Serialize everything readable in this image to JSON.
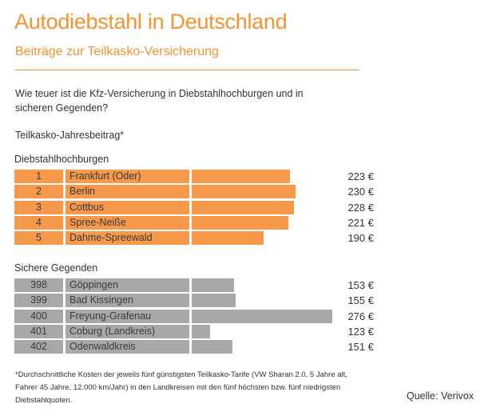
{
  "header": {
    "title": "Autodiebstahl in Deutschland",
    "subtitle": "Beiträge zur Teilkasko-Versicherung"
  },
  "question": "Wie teuer ist die Kfz-Versicherung in Diebstahlhochburgen und in sicheren Gegenden?",
  "metric_label": "Teilkasko-Jahresbeitrag*",
  "colors": {
    "accent": "#f7922e",
    "hotspot_bar": "#f7994a",
    "safe_bar": "#a8a8a8"
  },
  "chart_data": {
    "type": "bar",
    "orientation": "horizontal",
    "title": "Autodiebstahl in Deutschland",
    "subtitle": "Beiträge zur Teilkasko-Versicherung",
    "xlabel": "Teilkasko-Jahresbeitrag*",
    "unit": "€",
    "groups": [
      {
        "name": "Diebstahlhochburgen",
        "color": "#f7994a",
        "rows": [
          {
            "rank": "1",
            "region": "Frankfurt (Oder)",
            "value": 223,
            "label": "223 €"
          },
          {
            "rank": "2",
            "region": "Berlin",
            "value": 230,
            "label": "230 €"
          },
          {
            "rank": "3",
            "region": "Cottbus",
            "value": 228,
            "label": "228 €"
          },
          {
            "rank": "4",
            "region": "Spree-Neiße",
            "value": 221,
            "label": "221 €"
          },
          {
            "rank": "5",
            "region": "Dahme-Spreewald",
            "value": 190,
            "label": "190 €"
          }
        ]
      },
      {
        "name": "Sichere Gegenden",
        "color": "#a8a8a8",
        "rows": [
          {
            "rank": "398",
            "region": "Göppingen",
            "value": 153,
            "label": "153 €"
          },
          {
            "rank": "399",
            "region": "Bad Kissingen",
            "value": 155,
            "label": "155 €"
          },
          {
            "rank": "400",
            "region": "Freyung-Grafenau",
            "value": 276,
            "label": "276 €"
          },
          {
            "rank": "401",
            "region": "Coburg (Landkreis)",
            "value": 123,
            "label": "123 €"
          },
          {
            "rank": "402",
            "region": "Odenwaldkreis",
            "value": 151,
            "label": "151 €"
          }
        ]
      }
    ]
  },
  "footnote": "*Durchschnittliche Kosten der jeweils fünf günstigsten Teilkasko-Tarife (VW Sharan 2.0, 5 Jahre alt, Fahrer 45 Jahre, 12.000 km/Jahr) in den Landkreisen mit den fünf höchsten bzw. fünf niedrigsten Diebstahlquoten.",
  "source": "Quelle: Verivox"
}
